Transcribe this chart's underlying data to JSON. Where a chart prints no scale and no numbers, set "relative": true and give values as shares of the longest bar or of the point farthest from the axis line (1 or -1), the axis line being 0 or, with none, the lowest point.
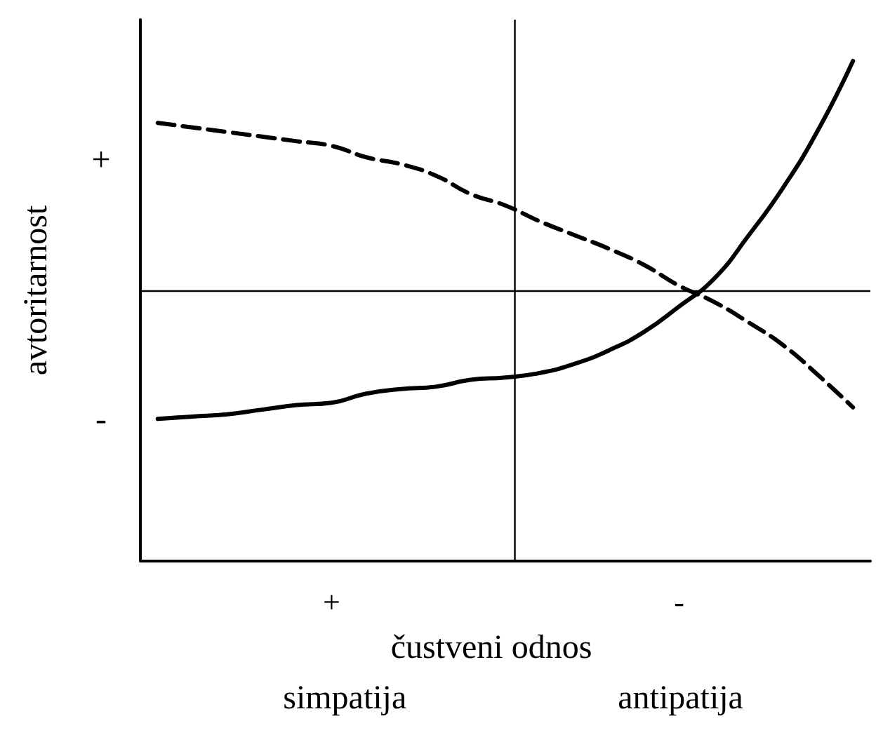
{
  "chart_data": {
    "type": "line",
    "xlabel": "čustveni odnos",
    "ylabel": "avtoritarnost",
    "relative": true,
    "annotations": [
      "+",
      "-",
      "simpatija",
      "antipatija"
    ],
    "categories": [
      null,
      null,
      null,
      null,
      null,
      "+",
      null,
      null,
      null,
      null,
      null,
      null,
      null,
      null,
      null,
      "-",
      null,
      null,
      null,
      null,
      null
    ],
    "grid": false,
    "marker": "none",
    "ref_lines": [
      {
        "axis": "y",
        "value": 0,
        "color": "#000000",
        "line_style": "solid"
      }
    ],
    "series": [
      {
        "color": "#000000",
        "line_style": "solid",
        "values": [
          -0.56,
          -0.55,
          -0.54,
          -0.52,
          -0.5,
          -0.49,
          -0.45,
          -0.43,
          -0.42,
          -0.39,
          -0.38,
          -0.36,
          -0.32,
          -0.26,
          -0.18,
          -0.07,
          0.05,
          0.24,
          0.45,
          0.7,
          1
        ]
      },
      {
        "color": "#000000",
        "line_style": "dashed",
        "values": [
          0.73,
          0.71,
          0.69,
          0.67,
          0.65,
          0.63,
          0.58,
          0.55,
          0.5,
          0.42,
          0.37,
          0.3,
          0.24,
          0.18,
          0.11,
          0.02,
          -0.05,
          -0.14,
          -0.24,
          -0.37,
          -0.51
        ]
      }
    ]
  }
}
